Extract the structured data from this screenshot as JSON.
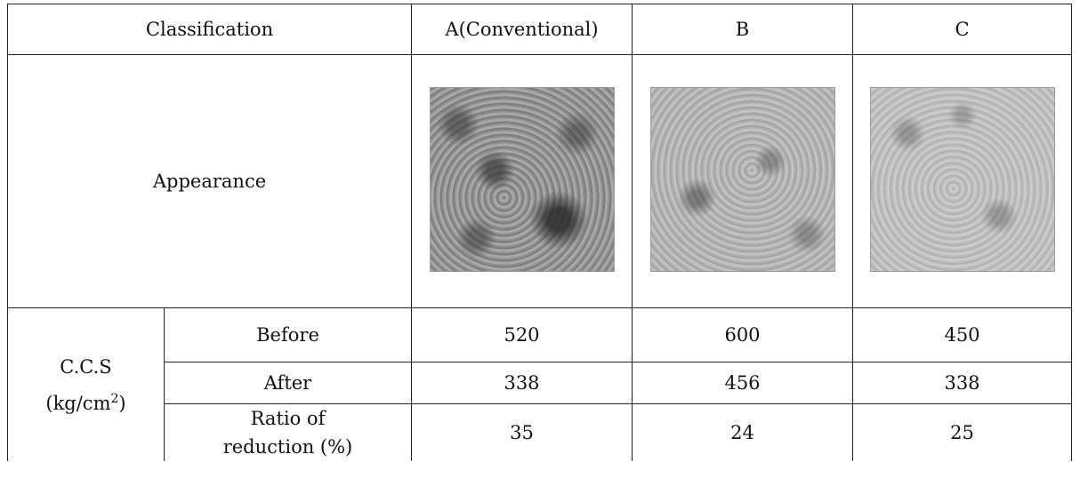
{
  "table": {
    "header": {
      "classification": "Classification",
      "columns": [
        "A(Conventional)",
        "B",
        "C"
      ]
    },
    "appearance_label": "Appearance",
    "ccs_group": {
      "label_line1": "C.C.S",
      "unit_prefix": "(kg/cm",
      "unit_sup": "2",
      "unit_suffix": ")"
    },
    "rows": [
      {
        "label": "Before",
        "values": [
          "520",
          "600",
          "450"
        ]
      },
      {
        "label": "After",
        "values": [
          "338",
          "456",
          "338"
        ]
      },
      {
        "label_line1": "Ratio of",
        "label_line2": "reduction (%)",
        "values": [
          "35",
          "24",
          "25"
        ]
      }
    ]
  }
}
